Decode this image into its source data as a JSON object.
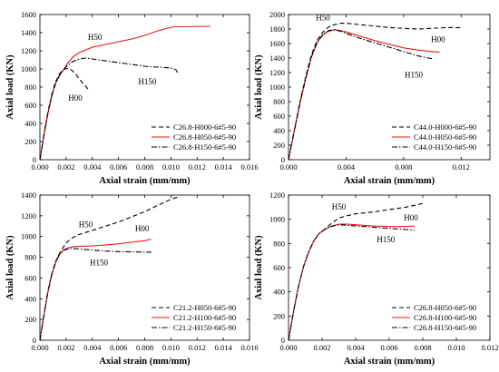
{
  "chart_data": [
    {
      "type": "line",
      "xlabel": "Axial strain (mm/mm)",
      "ylabel": "Axial load (KN)",
      "xlim": [
        0,
        0.016
      ],
      "ylim": [
        0,
        1600
      ],
      "xticks": [
        0,
        0.002,
        0.004,
        0.006,
        0.008,
        0.01,
        0.012,
        0.014,
        0.016
      ],
      "xtick_labels": [
        "0.000",
        "0.002",
        "0.004",
        "0.006",
        "0.008",
        "0.010",
        "0.012",
        "0.014",
        "0.016"
      ],
      "yticks": [
        0,
        200,
        400,
        600,
        800,
        1000,
        1200,
        1400,
        1600
      ],
      "ytick_labels": [
        "0",
        "200",
        "400",
        "600",
        "800",
        "1000",
        "1200",
        "1400",
        "1600"
      ],
      "legend_position": "bottom-right",
      "series": [
        {
          "name": "C26.8-H000-6#5-90",
          "style": "dashed",
          "color": "#000000",
          "x": [
            0,
            0.0003,
            0.0006,
            0.0009,
            0.0012,
            0.0015,
            0.0018,
            0.0021,
            0.0024,
            0.0027,
            0.003,
            0.0033,
            0.0036,
            0.0038
          ],
          "y": [
            0,
            270,
            520,
            720,
            860,
            950,
            995,
            1005,
            990,
            950,
            890,
            840,
            790,
            760
          ]
        },
        {
          "name": "C26.8-H050-6#5-90",
          "style": "solid",
          "color": "#e8191a",
          "x": [
            0,
            0.0003,
            0.0006,
            0.0009,
            0.0012,
            0.0015,
            0.0018,
            0.0021,
            0.0025,
            0.003,
            0.004,
            0.005,
            0.006,
            0.007,
            0.008,
            0.009,
            0.01,
            0.0105,
            0.013
          ],
          "y": [
            0,
            260,
            500,
            700,
            840,
            930,
            990,
            1060,
            1130,
            1180,
            1240,
            1270,
            1300,
            1330,
            1370,
            1420,
            1460,
            1465,
            1470
          ]
        },
        {
          "name": "C26.8-H150-6#5-90",
          "style": "dashdot",
          "color": "#000000",
          "x": [
            0,
            0.0003,
            0.0006,
            0.0009,
            0.0012,
            0.0015,
            0.0018,
            0.0021,
            0.0025,
            0.003,
            0.0035,
            0.004,
            0.005,
            0.006,
            0.007,
            0.008,
            0.009,
            0.01,
            0.0104,
            0.0105
          ],
          "y": [
            0,
            265,
            510,
            700,
            840,
            930,
            990,
            1040,
            1080,
            1110,
            1120,
            1110,
            1090,
            1070,
            1050,
            1030,
            1020,
            1010,
            990,
            960
          ]
        }
      ],
      "annotations": [
        {
          "text": "H50",
          "x": 0.0042,
          "y": 1320
        },
        {
          "text": "H150",
          "x": 0.0082,
          "y": 830
        },
        {
          "text": "H00",
          "x": 0.0027,
          "y": 650
        }
      ]
    },
    {
      "type": "line",
      "xlabel": "Axial strain (mm/mm)",
      "ylabel": "Axial load (KN)",
      "xlim": [
        0,
        0.014
      ],
      "ylim": [
        0,
        2000
      ],
      "xticks": [
        0,
        0.004,
        0.008,
        0.012
      ],
      "xtick_labels": [
        "0.000",
        "0.004",
        "0.008",
        "0.012"
      ],
      "yticks": [
        0,
        200,
        400,
        600,
        800,
        1000,
        1200,
        1400,
        1600,
        1800,
        2000
      ],
      "ytick_labels": [
        "0",
        "200",
        "400",
        "600",
        "800",
        "1000",
        "1200",
        "1400",
        "1600",
        "1800",
        "2000"
      ],
      "legend_position": "bottom-right",
      "series": [
        {
          "name": "C44.0-H000-6#5-90",
          "style": "dashed",
          "color": "#000000",
          "x": [
            0,
            0.0004,
            0.0008,
            0.0012,
            0.0016,
            0.002,
            0.0024,
            0.0028,
            0.0032,
            0.0036,
            0.004,
            0.005,
            0.006,
            0.007,
            0.008,
            0.009,
            0.01,
            0.011,
            0.012
          ],
          "y": [
            0,
            400,
            800,
            1150,
            1450,
            1650,
            1760,
            1830,
            1860,
            1880,
            1880,
            1860,
            1840,
            1820,
            1810,
            1800,
            1810,
            1820,
            1820
          ]
        },
        {
          "name": "C44.0-H050-6#5-90",
          "style": "solid",
          "color": "#e8191a",
          "x": [
            0,
            0.0004,
            0.0008,
            0.0012,
            0.0016,
            0.002,
            0.0024,
            0.0028,
            0.0032,
            0.0036,
            0.004,
            0.005,
            0.006,
            0.007,
            0.008,
            0.009,
            0.01,
            0.0105
          ],
          "y": [
            0,
            390,
            780,
            1120,
            1420,
            1620,
            1720,
            1770,
            1790,
            1780,
            1760,
            1700,
            1640,
            1590,
            1540,
            1510,
            1490,
            1480
          ]
        },
        {
          "name": "C44.0-H150-6#5-90",
          "style": "dashdot",
          "color": "#000000",
          "x": [
            0,
            0.0004,
            0.0008,
            0.0012,
            0.0016,
            0.002,
            0.0024,
            0.0028,
            0.0032,
            0.0036,
            0.004,
            0.005,
            0.006,
            0.007,
            0.008,
            0.009,
            0.01
          ],
          "y": [
            0,
            390,
            780,
            1120,
            1420,
            1620,
            1730,
            1780,
            1790,
            1770,
            1740,
            1670,
            1610,
            1550,
            1490,
            1430,
            1390
          ]
        }
      ],
      "annotations": [
        {
          "text": "H50",
          "x": 0.0024,
          "y": 1920
        },
        {
          "text": "H00",
          "x": 0.0104,
          "y": 1620
        },
        {
          "text": "H150",
          "x": 0.0087,
          "y": 1130
        }
      ]
    },
    {
      "type": "line",
      "xlabel": "Axial strain (mm/mm)",
      "ylabel": "Axial load (KN)",
      "xlim": [
        0,
        0.016
      ],
      "ylim": [
        0,
        1400
      ],
      "xticks": [
        0,
        0.002,
        0.004,
        0.006,
        0.008,
        0.01,
        0.012,
        0.014,
        0.016
      ],
      "xtick_labels": [
        "0.000",
        "0.002",
        "0.004",
        "0.006",
        "0.008",
        "0.010",
        "0.012",
        "0.014",
        "0.016"
      ],
      "yticks": [
        0,
        200,
        400,
        600,
        800,
        1000,
        1200,
        1400
      ],
      "ytick_labels": [
        "0",
        "200",
        "400",
        "600",
        "800",
        "1000",
        "1200",
        "1400"
      ],
      "legend_position": "bottom-right",
      "series": [
        {
          "name": "C21.2-H050-6#5-90",
          "style": "dashed",
          "color": "#000000",
          "x": [
            0,
            0.0003,
            0.0006,
            0.0009,
            0.0012,
            0.0015,
            0.0018,
            0.0021,
            0.0025,
            0.003,
            0.004,
            0.005,
            0.006,
            0.007,
            0.008,
            0.009,
            0.01,
            0.0105
          ],
          "y": [
            0,
            240,
            470,
            640,
            760,
            840,
            900,
            950,
            990,
            1020,
            1060,
            1100,
            1140,
            1190,
            1240,
            1300,
            1360,
            1380
          ]
        },
        {
          "name": "C21.2-H100-6#5-90",
          "style": "solid",
          "color": "#e8191a",
          "x": [
            0,
            0.0003,
            0.0006,
            0.0009,
            0.0012,
            0.0015,
            0.0018,
            0.0021,
            0.0025,
            0.003,
            0.004,
            0.005,
            0.006,
            0.007,
            0.008,
            0.0085
          ],
          "y": [
            0,
            235,
            460,
            630,
            750,
            830,
            870,
            890,
            900,
            905,
            910,
            920,
            930,
            945,
            960,
            975
          ]
        },
        {
          "name": "C21.2-H150-6#5-90",
          "style": "dashdot",
          "color": "#000000",
          "x": [
            0,
            0.0003,
            0.0006,
            0.0009,
            0.0012,
            0.0015,
            0.0018,
            0.0021,
            0.0025,
            0.003,
            0.004,
            0.005,
            0.006,
            0.007,
            0.008,
            0.0085
          ],
          "y": [
            0,
            235,
            460,
            630,
            750,
            830,
            865,
            880,
            885,
            880,
            870,
            860,
            855,
            852,
            850,
            850
          ]
        }
      ],
      "annotations": [
        {
          "text": "H50",
          "x": 0.0035,
          "y": 1090
        },
        {
          "text": "H00",
          "x": 0.0078,
          "y": 1050
        },
        {
          "text": "H150",
          "x": 0.0045,
          "y": 720
        }
      ]
    },
    {
      "type": "line",
      "xlabel": "Axial strain (mm/mm)",
      "ylabel": "Axial load (KN)",
      "xlim": [
        0,
        0.012
      ],
      "ylim": [
        0,
        1200
      ],
      "xticks": [
        0,
        0.002,
        0.004,
        0.006,
        0.008,
        0.01,
        0.012
      ],
      "xtick_labels": [
        "0.000",
        "0.002",
        "0.004",
        "0.006",
        "0.008",
        "0.010",
        "0.012"
      ],
      "yticks": [
        0,
        200,
        400,
        600,
        800,
        1000,
        1200
      ],
      "ytick_labels": [
        "0",
        "200",
        "400",
        "600",
        "800",
        "1000",
        "1200"
      ],
      "legend_position": "bottom-right",
      "series": [
        {
          "name": "C26.8-H050-6#5-90",
          "style": "dashed",
          "color": "#000000",
          "x": [
            0,
            0.0003,
            0.0006,
            0.0009,
            0.0012,
            0.0015,
            0.0018,
            0.0021,
            0.0025,
            0.003,
            0.0035,
            0.004,
            0.005,
            0.006,
            0.007,
            0.008
          ],
          "y": [
            0,
            240,
            450,
            610,
            730,
            820,
            880,
            910,
            960,
            1010,
            1030,
            1045,
            1060,
            1080,
            1100,
            1130
          ]
        },
        {
          "name": "C26.8-H100-6#5-90",
          "style": "solid",
          "color": "#e8191a",
          "x": [
            0,
            0.0003,
            0.0006,
            0.0009,
            0.0012,
            0.0015,
            0.0018,
            0.0021,
            0.0025,
            0.003,
            0.0035,
            0.004,
            0.005,
            0.006,
            0.007,
            0.0075
          ],
          "y": [
            0,
            240,
            450,
            610,
            730,
            820,
            880,
            910,
            940,
            960,
            960,
            955,
            945,
            940,
            940,
            945
          ]
        },
        {
          "name": "C26.8-H150-6#5-90",
          "style": "dashdot",
          "color": "#000000",
          "x": [
            0,
            0.0003,
            0.0006,
            0.0009,
            0.0012,
            0.0015,
            0.0018,
            0.0021,
            0.0025,
            0.003,
            0.0035,
            0.004,
            0.005,
            0.006,
            0.007,
            0.0075
          ],
          "y": [
            0,
            240,
            450,
            610,
            730,
            820,
            880,
            910,
            940,
            955,
            950,
            945,
            935,
            925,
            915,
            910
          ]
        }
      ],
      "annotations": [
        {
          "text": "H50",
          "x": 0.003,
          "y": 1080
        },
        {
          "text": "H00",
          "x": 0.0073,
          "y": 990
        },
        {
          "text": "H150",
          "x": 0.0058,
          "y": 810
        }
      ]
    }
  ]
}
